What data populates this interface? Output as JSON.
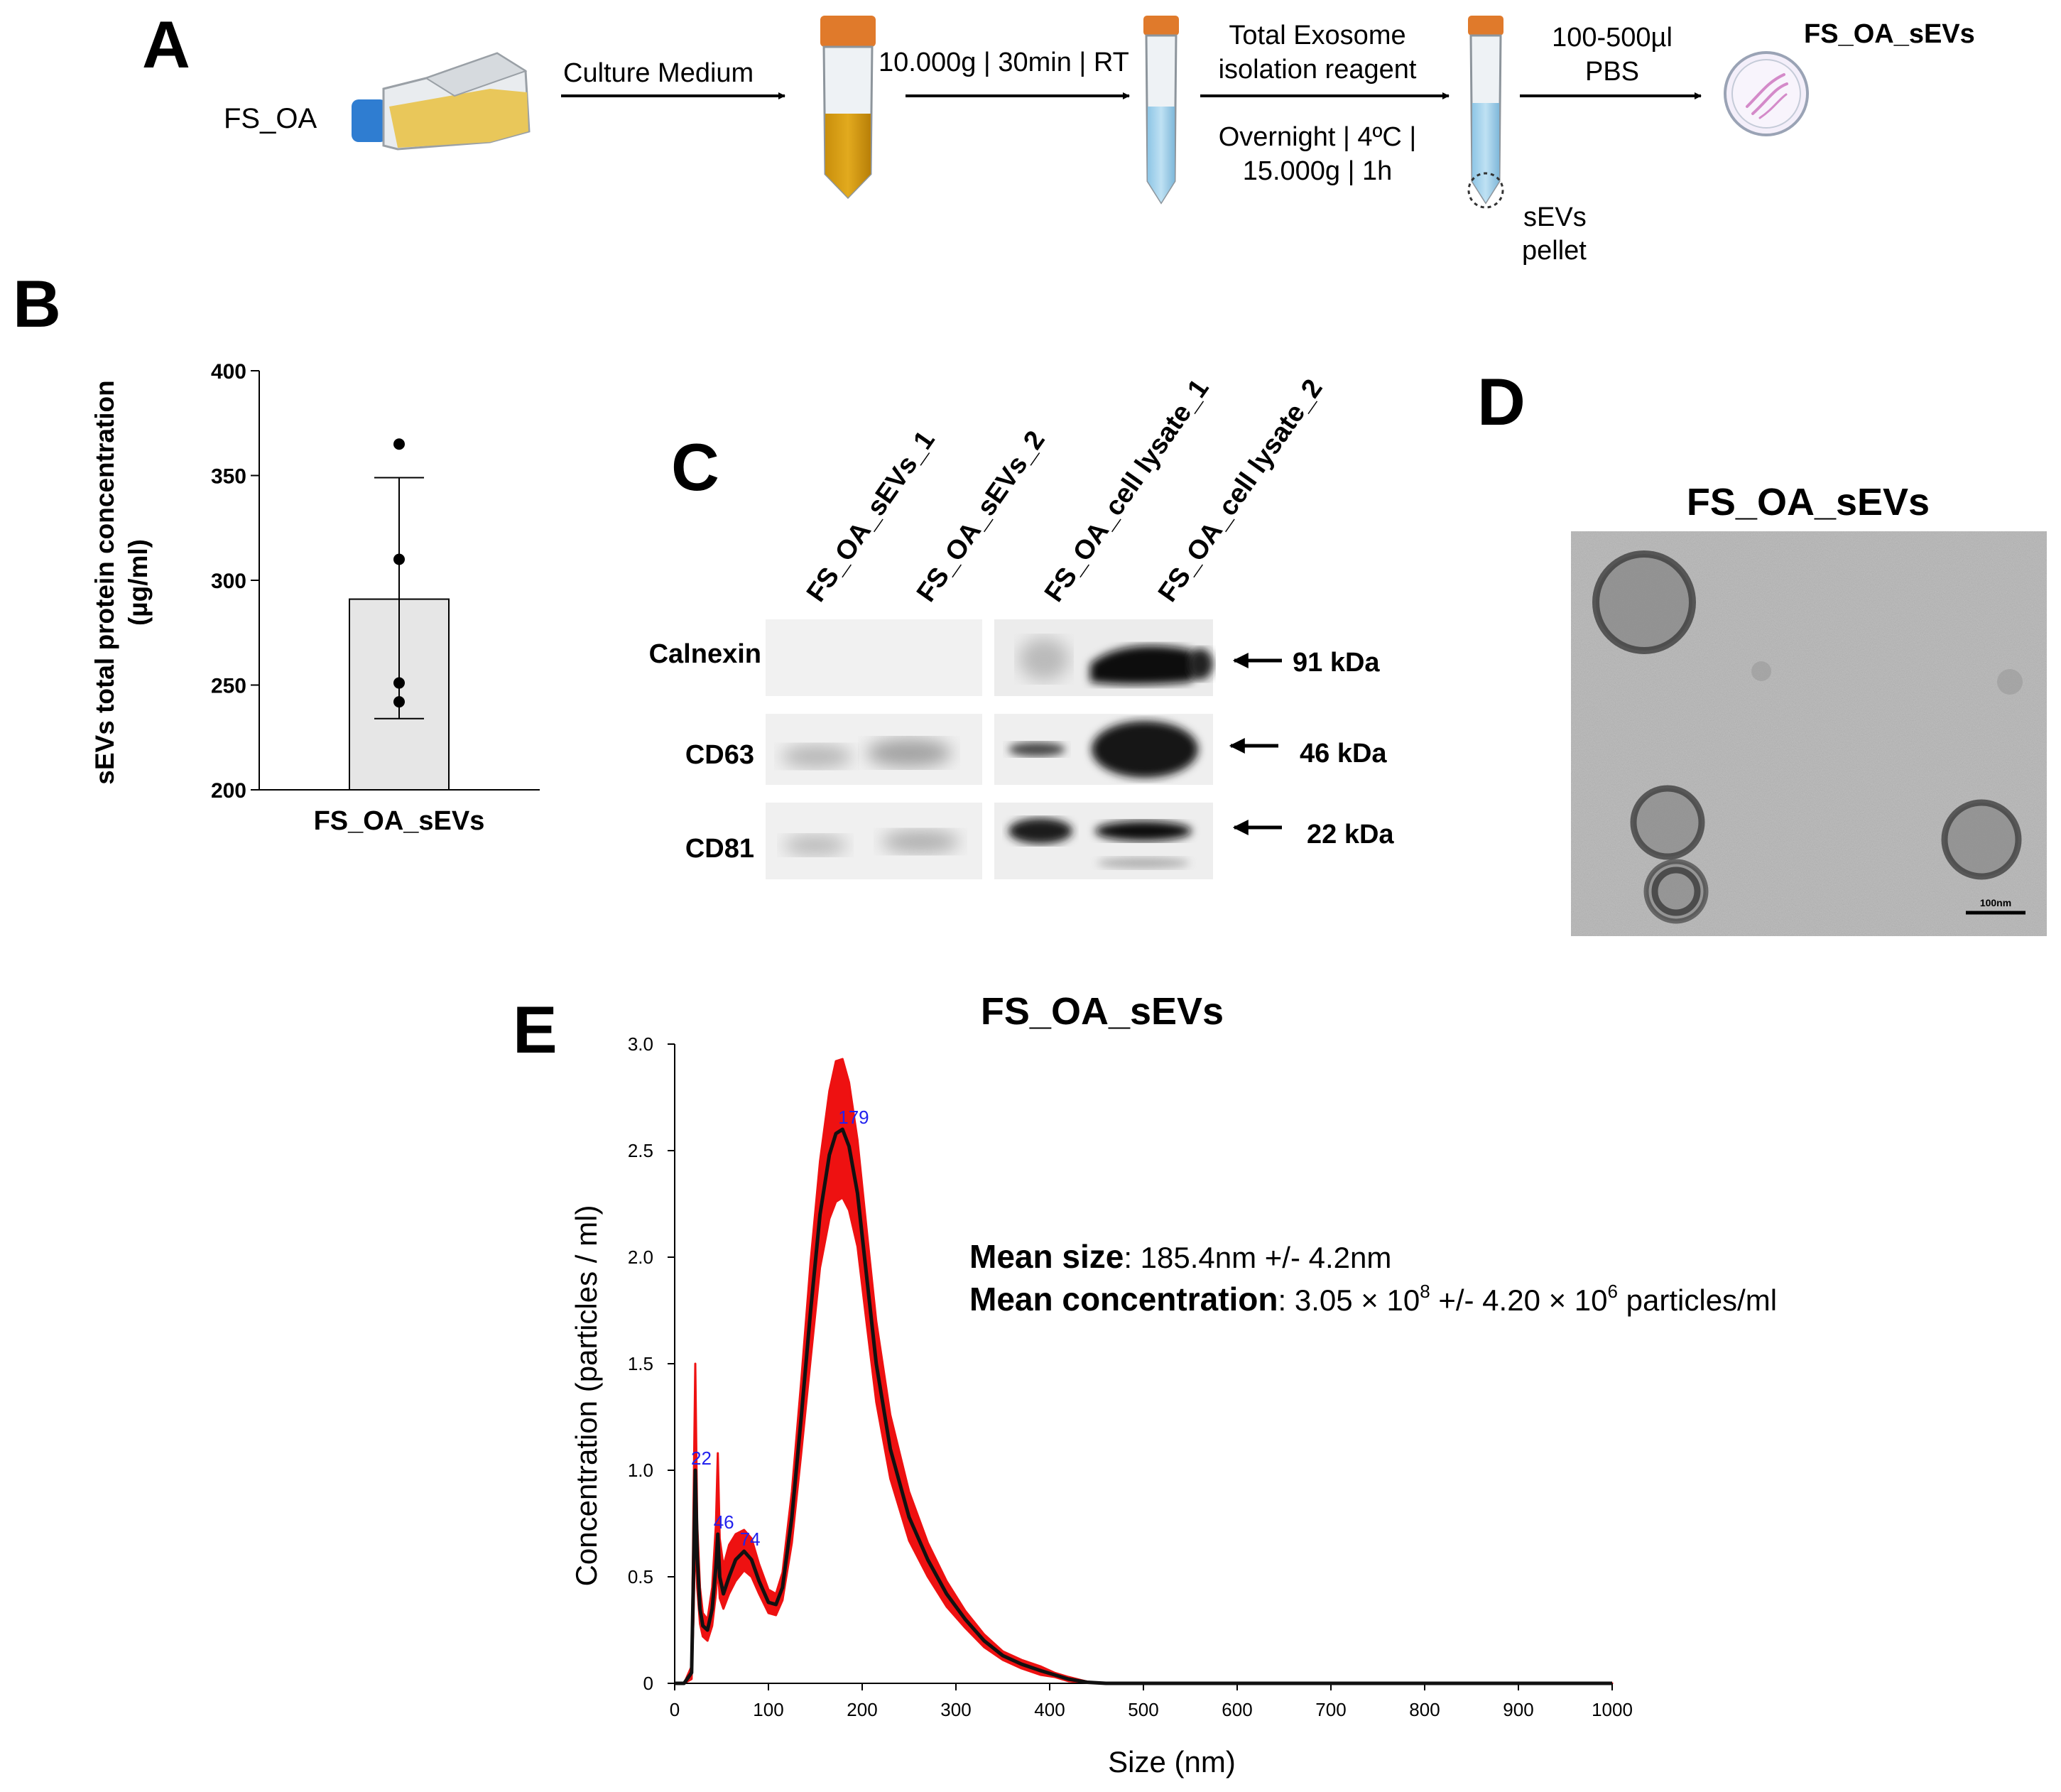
{
  "panels": {
    "a": "A",
    "b": "B",
    "c": "C",
    "d": "D",
    "e": "E"
  },
  "workflow": {
    "source": "FS_OA",
    "step1": "Culture Medium",
    "step2": "10.000g | 30min | RT",
    "step3_line1": "Total Exosome",
    "step3_line2": "isolation reagent",
    "step3_line3": "Overnight | 4ºC |",
    "step3_line4": "15.000g | 1h",
    "pellet_line1": "sEVs",
    "pellet_line2": "pellet",
    "step4_line1": "100-500µl",
    "step4_line2": "PBS",
    "product": "FS_OA_sEVs"
  },
  "chart_data": [
    {
      "panel": "B",
      "type": "bar",
      "categories": [
        "FS_OA_sEVs"
      ],
      "values": [
        291
      ],
      "error": {
        "lower": 234,
        "upper": 349
      },
      "points": [
        365,
        310,
        251,
        242
      ],
      "ylabel_line1": "sEVs total protein concentration",
      "ylabel_line2": "(µg/ml)",
      "ylim": [
        200,
        400
      ],
      "yticks": [
        200,
        250,
        300,
        350,
        400
      ],
      "bar_color": "#e6e6e6"
    },
    {
      "panel": "E",
      "type": "line",
      "title": "FS_OA_sEVs",
      "xlabel": "Size (nm)",
      "ylabel": "Concentration (particles / ml)",
      "xlim": [
        0,
        1000
      ],
      "ylim": [
        0,
        3.0
      ],
      "xticks": [
        0,
        100,
        200,
        300,
        400,
        500,
        600,
        700,
        800,
        900,
        1000
      ],
      "yticks": [
        0,
        0.5,
        1.0,
        1.5,
        2.0,
        2.5,
        3.0
      ],
      "ytick_labels": [
        "0",
        "0.5",
        "1.0",
        "1.5",
        "2.0",
        "2.5",
        "3.0"
      ],
      "mean_line_color": "#111111",
      "band_color": "#ee1111",
      "series": [
        {
          "role": "mean",
          "x": [
            0,
            10,
            18,
            20,
            22,
            24,
            27,
            30,
            35,
            40,
            44,
            46,
            48,
            52,
            58,
            65,
            74,
            82,
            90,
            100,
            108,
            115,
            125,
            135,
            145,
            155,
            165,
            172,
            179,
            186,
            195,
            205,
            215,
            230,
            250,
            270,
            290,
            310,
            330,
            350,
            370,
            390,
            405,
            420,
            440,
            460,
            500,
            600,
            700,
            800,
            900,
            1000
          ],
          "y": [
            0,
            0,
            0.05,
            0.5,
            1.0,
            0.6,
            0.35,
            0.27,
            0.25,
            0.35,
            0.55,
            0.7,
            0.5,
            0.42,
            0.5,
            0.58,
            0.62,
            0.58,
            0.48,
            0.38,
            0.37,
            0.45,
            0.78,
            1.25,
            1.75,
            2.2,
            2.48,
            2.58,
            2.6,
            2.52,
            2.3,
            1.9,
            1.5,
            1.1,
            0.78,
            0.58,
            0.42,
            0.3,
            0.2,
            0.13,
            0.09,
            0.06,
            0.04,
            0.02,
            0.005,
            0,
            0,
            0,
            0,
            0,
            0,
            0
          ]
        },
        {
          "role": "upper",
          "x": [
            0,
            10,
            18,
            20,
            22,
            24,
            27,
            30,
            35,
            40,
            44,
            46,
            48,
            52,
            58,
            65,
            74,
            82,
            90,
            100,
            108,
            115,
            125,
            135,
            145,
            155,
            165,
            172,
            179,
            186,
            195,
            205,
            215,
            230,
            250,
            270,
            290,
            310,
            330,
            350,
            370,
            390,
            405,
            420,
            440,
            460,
            500,
            600,
            700,
            800,
            900,
            1000
          ],
          "y": [
            0,
            0,
            0.08,
            0.8,
            1.5,
            0.75,
            0.45,
            0.33,
            0.3,
            0.45,
            0.75,
            1.08,
            0.68,
            0.55,
            0.65,
            0.7,
            0.72,
            0.68,
            0.56,
            0.44,
            0.42,
            0.52,
            0.9,
            1.42,
            1.98,
            2.45,
            2.78,
            2.92,
            2.93,
            2.82,
            2.55,
            2.12,
            1.7,
            1.26,
            0.9,
            0.66,
            0.48,
            0.34,
            0.23,
            0.15,
            0.11,
            0.08,
            0.05,
            0.03,
            0.008,
            0,
            0,
            0,
            0,
            0,
            0,
            0
          ]
        },
        {
          "role": "lower",
          "x": [
            0,
            10,
            18,
            20,
            22,
            24,
            27,
            30,
            35,
            40,
            44,
            46,
            48,
            52,
            58,
            65,
            74,
            82,
            90,
            100,
            108,
            115,
            125,
            135,
            145,
            155,
            165,
            172,
            179,
            186,
            195,
            205,
            215,
            230,
            250,
            270,
            290,
            310,
            330,
            350,
            370,
            390,
            405,
            420,
            440,
            460,
            500,
            600,
            700,
            800,
            900,
            1000
          ],
          "y": [
            0,
            0,
            0.02,
            0.3,
            0.7,
            0.45,
            0.28,
            0.22,
            0.2,
            0.27,
            0.42,
            0.55,
            0.4,
            0.35,
            0.42,
            0.48,
            0.53,
            0.5,
            0.42,
            0.33,
            0.32,
            0.39,
            0.66,
            1.08,
            1.52,
            1.95,
            2.18,
            2.26,
            2.28,
            2.22,
            2.05,
            1.68,
            1.32,
            0.96,
            0.67,
            0.5,
            0.36,
            0.26,
            0.17,
            0.11,
            0.07,
            0.04,
            0.03,
            0.01,
            0.003,
            0,
            0,
            0,
            0,
            0,
            0,
            0
          ]
        }
      ],
      "peaks": [
        {
          "x": 22,
          "y": 1.0,
          "label": "22"
        },
        {
          "x": 46,
          "y": 0.7,
          "label": "46"
        },
        {
          "x": 74,
          "y": 0.62,
          "label": "74"
        },
        {
          "x": 179,
          "y": 2.6,
          "label": "179"
        }
      ],
      "peak_label_color": "#2222ee",
      "stats": {
        "size_label": "Mean size",
        "size_value": ": 185.4nm +/- 4.2nm",
        "conc_label": "Mean concentration",
        "conc_a": ": 3.05 × 10",
        "conc_exp_a": "8",
        "conc_b": " +/-  4.20 × 10",
        "conc_exp_b": "6",
        "conc_c": " particles/ml"
      }
    }
  ],
  "western_blot": {
    "lanes": [
      "FS_OA_sEVs_1",
      "FS_OA_sEVs_2",
      "FS_OA_cell lysate_1",
      "FS_OA_cell lysate_2"
    ],
    "markers": [
      {
        "name": "Calnexin",
        "kda": "91 kDa"
      },
      {
        "name": "CD63",
        "kda": "46 kDa"
      },
      {
        "name": "CD81",
        "kda": "22 kDa"
      }
    ]
  },
  "tem": {
    "title": "FS_OA_sEVs",
    "scale_label": "100nm"
  }
}
